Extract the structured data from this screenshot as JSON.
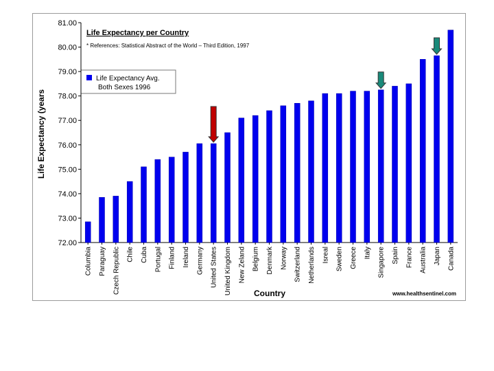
{
  "chart_data": {
    "type": "bar",
    "title": "Life Expectancy per Country",
    "subtitle": "* References: Statistical Abstract of the World – Third Edition, 1997",
    "xlabel": "Country",
    "ylabel": "Life Expectancy (years",
    "ylim": [
      72,
      81
    ],
    "yticks": [
      "72.00",
      "73.00",
      "74.00",
      "75.00",
      "76.00",
      "77.00",
      "78.00",
      "79.00",
      "80.00",
      "81.00"
    ],
    "legend": {
      "label_line1": "Life Expectancy Avg.",
      "label_line2": "Both Sexes 1996",
      "placement": "top-left"
    },
    "source": "www.healthsentinel.com",
    "bar_color": "#0000ee",
    "categories": [
      "Columbia",
      "Paraguay",
      "Czech Republic",
      "Chile",
      "Cuba",
      "Portugal",
      "Finland",
      "Ireland",
      "Germany",
      "United States",
      "United Kingdom",
      "New Zeland",
      "Belgium",
      "Denmark",
      "Norway",
      "Switzerland",
      "Netherlands",
      "Isreal",
      "Sweden",
      "Greece",
      "Italy",
      "Singapore",
      "Spain",
      "France",
      "Australia",
      "Japan",
      "Canada"
    ],
    "values": [
      72.85,
      73.85,
      73.9,
      74.5,
      75.1,
      75.4,
      75.5,
      75.7,
      76.05,
      76.05,
      76.5,
      77.1,
      77.2,
      77.4,
      77.6,
      77.7,
      77.8,
      78.1,
      78.1,
      78.2,
      78.2,
      78.25,
      78.4,
      78.5,
      79.5,
      79.65,
      80.7
    ],
    "annotations": [
      {
        "type": "arrow",
        "category": "United States",
        "color": "#c00000"
      },
      {
        "type": "arrow",
        "category": "Singapore",
        "color": "#1a8a7a"
      },
      {
        "type": "arrow",
        "category": "Japan",
        "color": "#1a8a7a"
      }
    ]
  }
}
